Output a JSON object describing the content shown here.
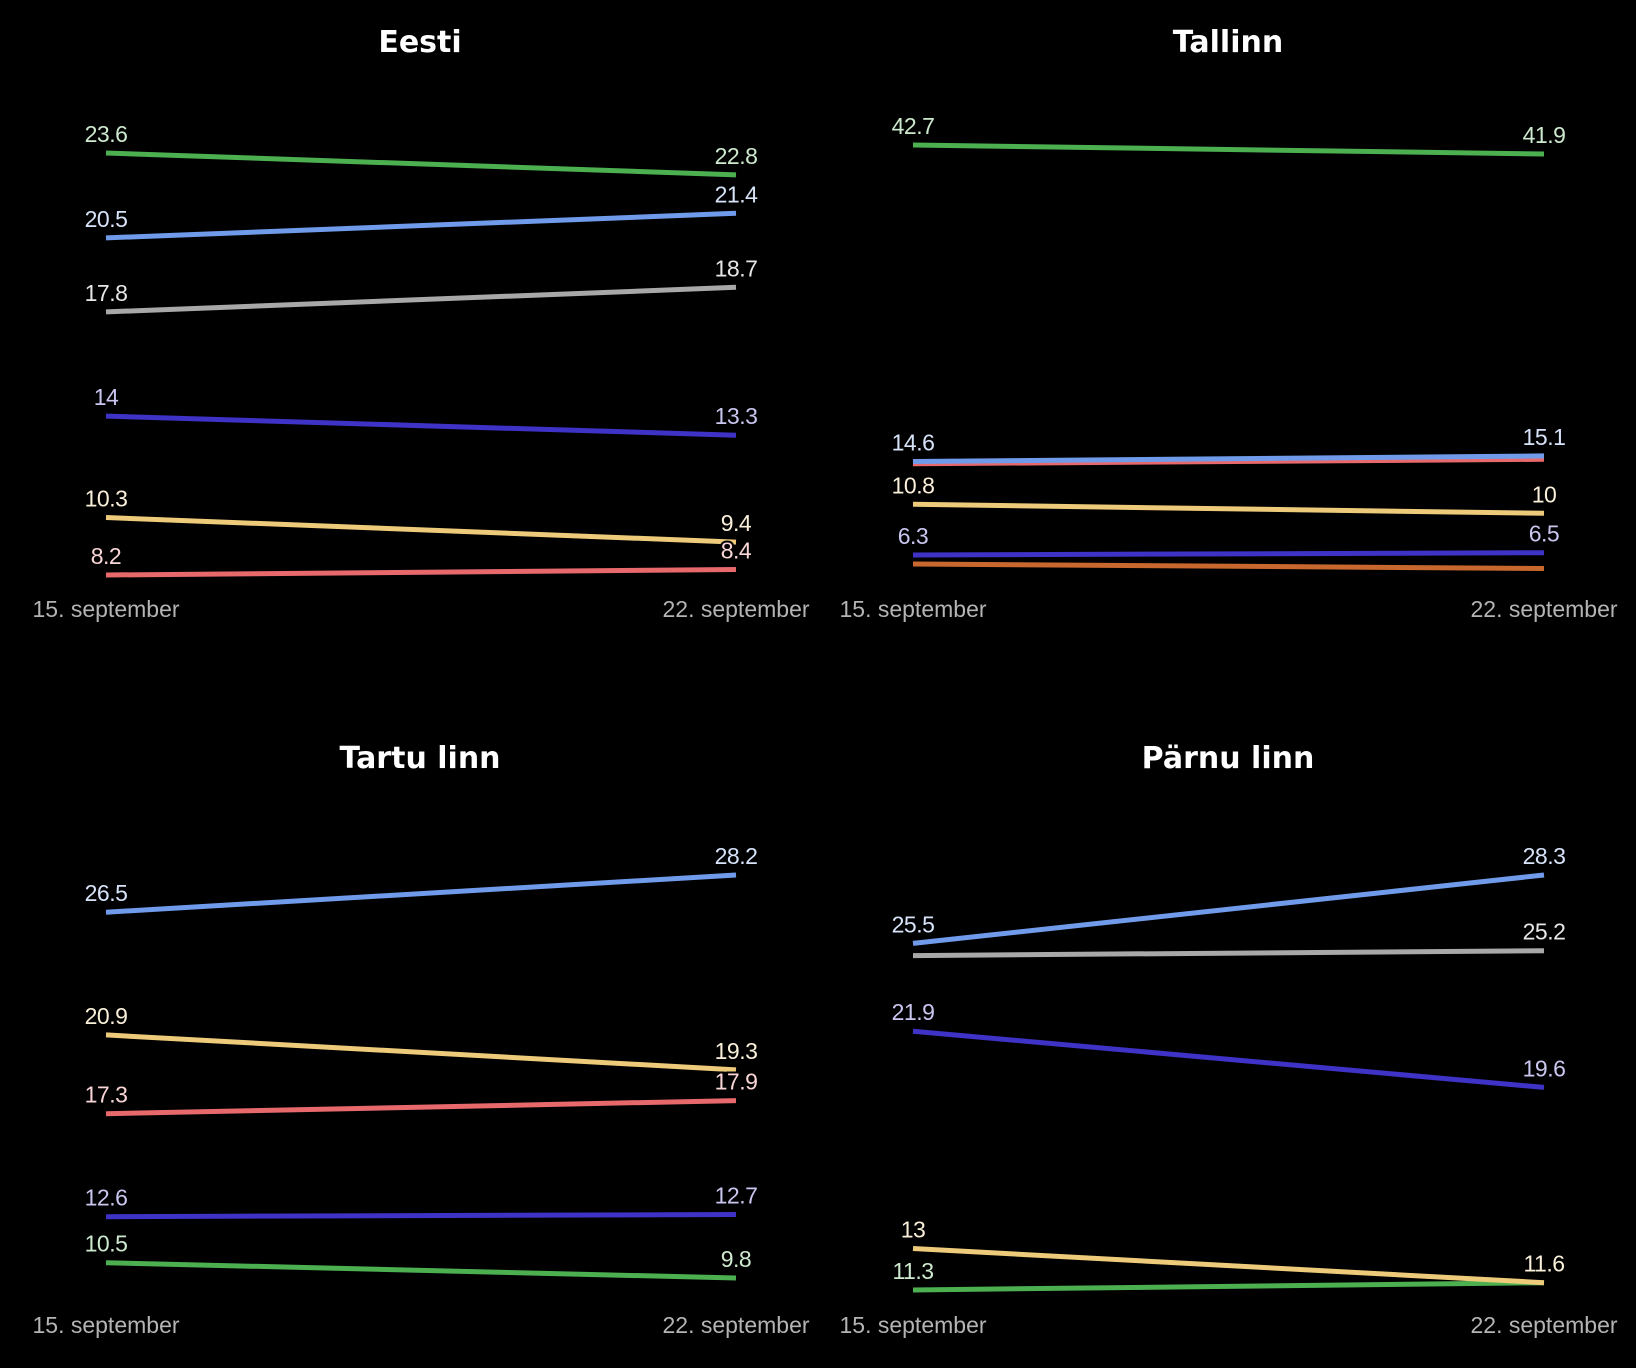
{
  "colors": {
    "background": "#000000",
    "green": "#4caf50",
    "light_blue": "#6f9bea",
    "gray": "#a8a8a8",
    "dark_blue": "#3e33c6",
    "yellow": "#edcb7a",
    "red": "#e8696b",
    "orange": "#c8682e"
  },
  "chart_data": [
    {
      "type": "line",
      "title": "Eesti",
      "x": [
        "15. september",
        "22. september"
      ],
      "series": [
        {
          "values": [
            23.6,
            22.8
          ],
          "color": "green",
          "labels": [
            "23.6",
            "22.8"
          ]
        },
        {
          "values": [
            20.5,
            21.4
          ],
          "color": "light_blue",
          "labels": [
            "20.5",
            "21.4"
          ]
        },
        {
          "values": [
            17.8,
            18.7
          ],
          "color": "gray",
          "labels": [
            "17.8",
            "18.7"
          ]
        },
        {
          "values": [
            14,
            13.3
          ],
          "color": "dark_blue",
          "labels": [
            "14",
            "13.3"
          ]
        },
        {
          "values": [
            10.3,
            9.4
          ],
          "color": "yellow",
          "labels": [
            "10.3",
            "9.4"
          ]
        },
        {
          "values": [
            8.2,
            8.4
          ],
          "color": "red",
          "labels": [
            "8.2",
            "8.4"
          ]
        }
      ]
    },
    {
      "type": "line",
      "title": "Tallinn",
      "x": [
        "15. september",
        "22. september"
      ],
      "series": [
        {
          "values": [
            42.7,
            41.9
          ],
          "color": "green",
          "labels": [
            "42.7",
            "41.9"
          ]
        },
        {
          "values": [
            14.6,
            15.1
          ],
          "color": "light_blue",
          "labels": [
            "14.6",
            "15.1"
          ]
        },
        {
          "values": [
            14.4,
            14.8
          ],
          "color": "red",
          "labels": [
            "",
            ""
          ]
        },
        {
          "values": [
            10.8,
            10
          ],
          "color": "yellow",
          "labels": [
            "10.8",
            "10"
          ]
        },
        {
          "values": [
            6.3,
            6.5
          ],
          "color": "dark_blue",
          "labels": [
            "6.3",
            "6.5"
          ]
        },
        {
          "values": [
            5.5,
            5.1
          ],
          "color": "orange",
          "labels": [
            "",
            ""
          ]
        }
      ]
    },
    {
      "type": "line",
      "title": "Tartu linn",
      "x": [
        "15. september",
        "22. september"
      ],
      "series": [
        {
          "values": [
            26.5,
            28.2
          ],
          "color": "light_blue",
          "labels": [
            "26.5",
            "28.2"
          ]
        },
        {
          "values": [
            20.9,
            19.3
          ],
          "color": "yellow",
          "labels": [
            "20.9",
            "19.3"
          ]
        },
        {
          "values": [
            17.3,
            17.9
          ],
          "color": "red",
          "labels": [
            "17.3",
            "17.9"
          ]
        },
        {
          "values": [
            12.6,
            12.7
          ],
          "color": "dark_blue",
          "labels": [
            "12.6",
            "12.7"
          ]
        },
        {
          "values": [
            10.5,
            9.8
          ],
          "color": "green",
          "labels": [
            "10.5",
            "9.8"
          ]
        }
      ]
    },
    {
      "type": "line",
      "title": "Pärnu linn",
      "x": [
        "15. september",
        "22. september"
      ],
      "series": [
        {
          "values": [
            25.5,
            28.3
          ],
          "color": "light_blue",
          "labels": [
            "25.5",
            "28.3"
          ]
        },
        {
          "values": [
            25,
            25.2
          ],
          "color": "gray",
          "labels": [
            "",
            "25.2"
          ]
        },
        {
          "values": [
            21.9,
            19.6
          ],
          "color": "dark_blue",
          "labels": [
            "21.9",
            "19.6"
          ]
        },
        {
          "values": [
            13,
            11.6
          ],
          "color": "yellow",
          "labels": [
            "13",
            "11.6"
          ]
        },
        {
          "values": [
            11.3,
            11.6
          ],
          "color": "green",
          "labels": [
            "11.3",
            ""
          ]
        }
      ]
    }
  ]
}
